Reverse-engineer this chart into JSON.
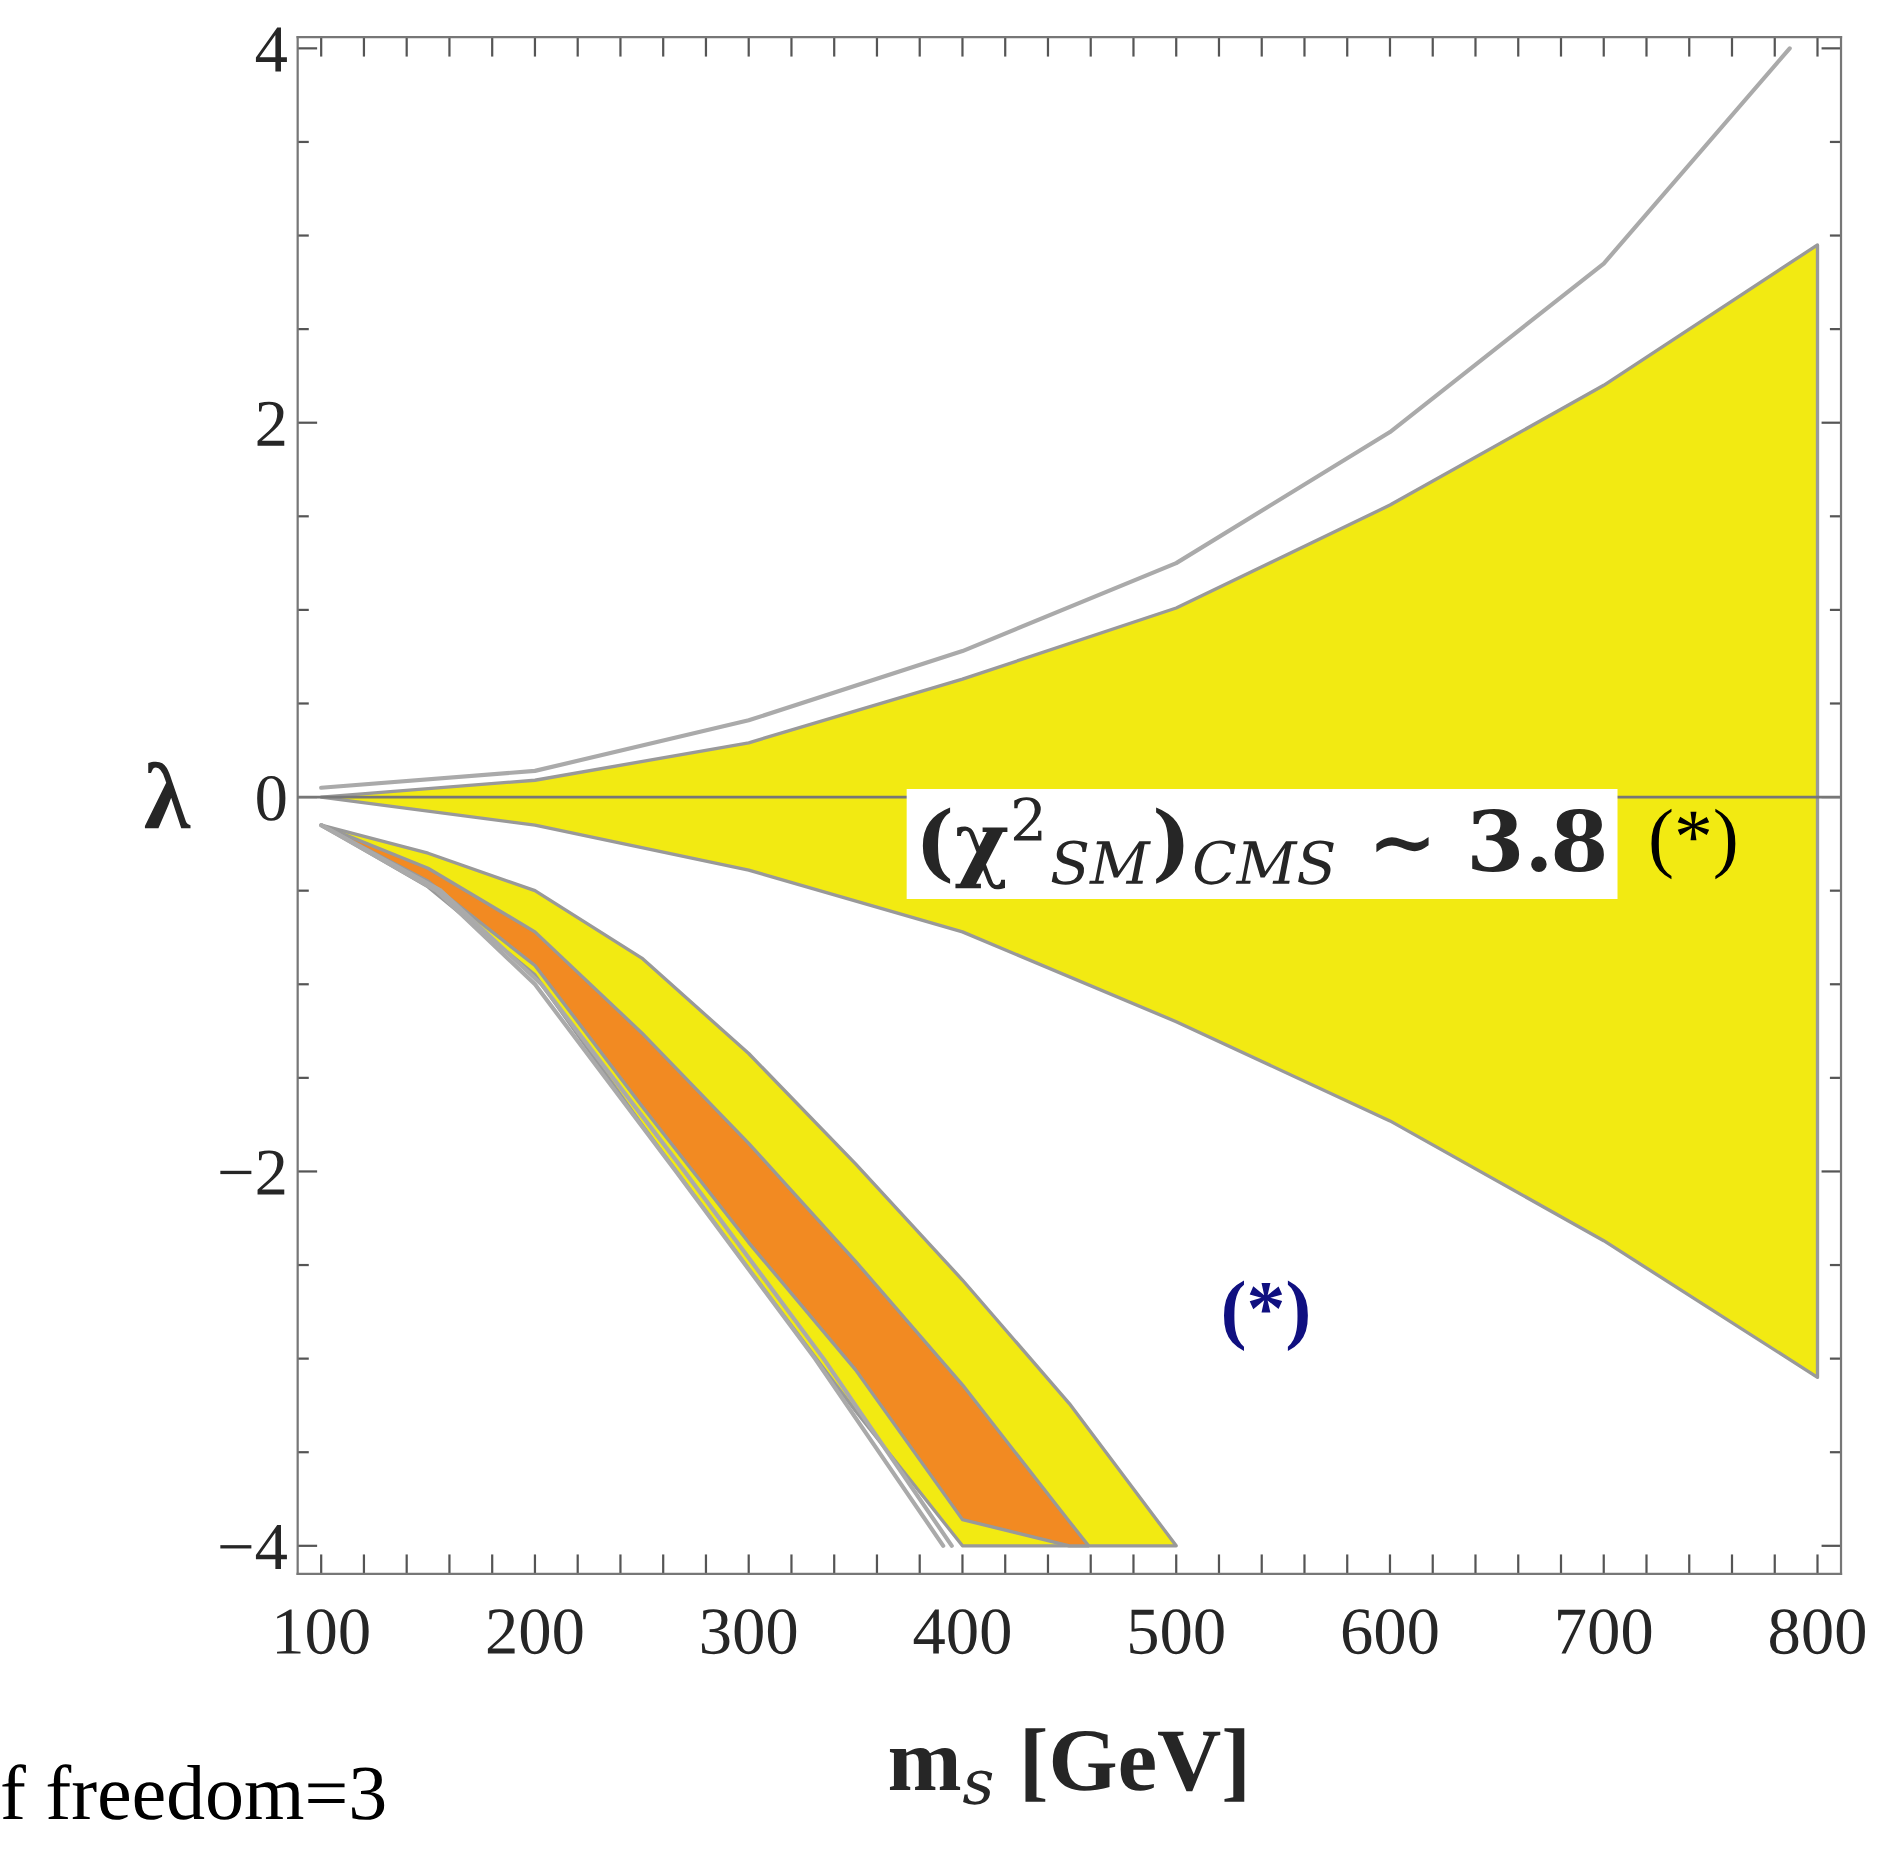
{
  "chart_data": {
    "type": "area",
    "xlabel": "m$_{s}$ [GeV]",
    "ylabel": "λ",
    "xlim": [
      89,
      811
    ],
    "ylim": [
      -4.15,
      4.06
    ],
    "xticks": [
      100,
      {
        "value": 120,
        "label": null
      },
      {
        "value": 140,
        "label": null
      },
      {
        "value": 160,
        "label": null
      },
      {
        "value": 180,
        "label": null
      },
      200,
      {
        "value": 220,
        "label": null
      },
      {
        "value": 240,
        "label": null
      },
      {
        "value": 260,
        "label": null
      },
      {
        "value": 280,
        "label": null
      },
      300,
      {
        "value": 320,
        "label": null
      },
      {
        "value": 340,
        "label": null
      },
      {
        "value": 360,
        "label": null
      },
      {
        "value": 380,
        "label": null
      },
      400,
      {
        "value": 420,
        "label": null
      },
      {
        "value": 440,
        "label": null
      },
      {
        "value": 460,
        "label": null
      },
      {
        "value": 480,
        "label": null
      },
      500,
      {
        "value": 520,
        "label": null
      },
      {
        "value": 540,
        "label": null
      },
      {
        "value": 560,
        "label": null
      },
      {
        "value": 580,
        "label": null
      },
      600,
      {
        "value": 620,
        "label": null
      },
      {
        "value": 640,
        "label": null
      },
      {
        "value": 660,
        "label": null
      },
      {
        "value": 680,
        "label": null
      },
      700,
      {
        "value": 720,
        "label": null
      },
      {
        "value": 740,
        "label": null
      },
      {
        "value": 760,
        "label": null
      },
      {
        "value": 780,
        "label": null
      },
      800
    ],
    "yticks": [
      {
        "value": -4,
        "label": "−4"
      },
      {
        "value": -3.5,
        "label": null
      },
      {
        "value": -3,
        "label": null
      },
      {
        "value": -2.5,
        "label": null
      },
      {
        "value": -2,
        "label": "−2"
      },
      {
        "value": -1.5,
        "label": null
      },
      {
        "value": -1,
        "label": null
      },
      {
        "value": -0.5,
        "label": null
      },
      0,
      {
        "value": 0.5,
        "label": null
      },
      {
        "value": 1,
        "label": null
      },
      {
        "value": 1.5,
        "label": null
      },
      2,
      {
        "value": 2.5,
        "label": null
      },
      {
        "value": 3,
        "label": null
      },
      {
        "value": 3.5,
        "label": null
      },
      4
    ],
    "series": [
      {
        "type": "line",
        "color": "#f2ea12",
        "x": [
          100,
          200,
          300,
          400,
          500,
          600,
          700,
          800
        ],
        "values": [
          null,
          null,
          null,
          null,
          null,
          null,
          null,
          null
        ],
        "upper": [
          0,
          0.09,
          0.29,
          0.63,
          1.01,
          1.56,
          2.2,
          2.95
        ],
        "lower": [
          0,
          -0.15,
          -0.39,
          -0.72,
          -1.2,
          -1.73,
          -2.37,
          -3.1
        ]
      },
      {
        "type": "line",
        "color": "#f2ea12",
        "x": [
          100,
          150,
          200,
          250,
          300,
          350,
          400,
          450,
          500
        ],
        "values": [
          null,
          null,
          null,
          null,
          null,
          null,
          null,
          null,
          null
        ],
        "upper": [
          -0.15,
          -0.3,
          -0.5,
          -0.86,
          -1.37,
          -1.96,
          -2.58,
          -3.24,
          -4.0
        ],
        "lower": [
          -0.15,
          -0.48,
          -0.95,
          -1.75,
          -2.52,
          -3.28,
          -4.0,
          -4.0,
          -4.0
        ]
      },
      {
        "type": "line",
        "color": "#f28a22",
        "x": [
          100,
          150,
          200,
          250,
          300,
          350,
          400,
          450,
          459
        ],
        "values": [
          null,
          null,
          null,
          null,
          null,
          null,
          null,
          null,
          null
        ],
        "upper": [
          -0.15,
          -0.38,
          -0.72,
          -1.26,
          -1.85,
          -2.48,
          -3.14,
          -3.87,
          -4.0
        ],
        "lower": [
          -0.15,
          -0.45,
          -0.9,
          -1.65,
          -2.38,
          -3.06,
          -3.86,
          -4.0,
          -4.0
        ]
      },
      {
        "type": "line",
        "color": "#aaaaaa",
        "x": [
          100,
          200,
          300,
          400,
          500,
          600,
          700,
          787
        ],
        "values": [
          0.05,
          0.14,
          0.41,
          0.78,
          1.25,
          1.95,
          2.85,
          4.0
        ]
      },
      {
        "type": "line",
        "color": "#aaaaaa",
        "x": [
          100,
          154,
          200,
          266,
          331,
          391
        ],
        "values": [
          -0.15,
          -0.5,
          -1.0,
          -2.0,
          -3.0,
          -4.0
        ]
      },
      {
        "type": "line",
        "color": "#aaaaaa",
        "x": [
          100,
          156,
          203,
          270,
          335,
          395
        ],
        "values": [
          -0.15,
          -0.5,
          -1.0,
          -2.0,
          -3.0,
          -4.0
        ]
      }
    ],
    "ref_lines": [
      {
        "axis": "y",
        "value": 0,
        "color": "#777777"
      }
    ],
    "annotations": [
      "(χ$^{2}$$_{SM}$)$_{CMS}$ ∼ 3.8",
      "(*)",
      "(*)",
      "f freedom=3"
    ],
    "grid": false,
    "legend": false
  }
}
